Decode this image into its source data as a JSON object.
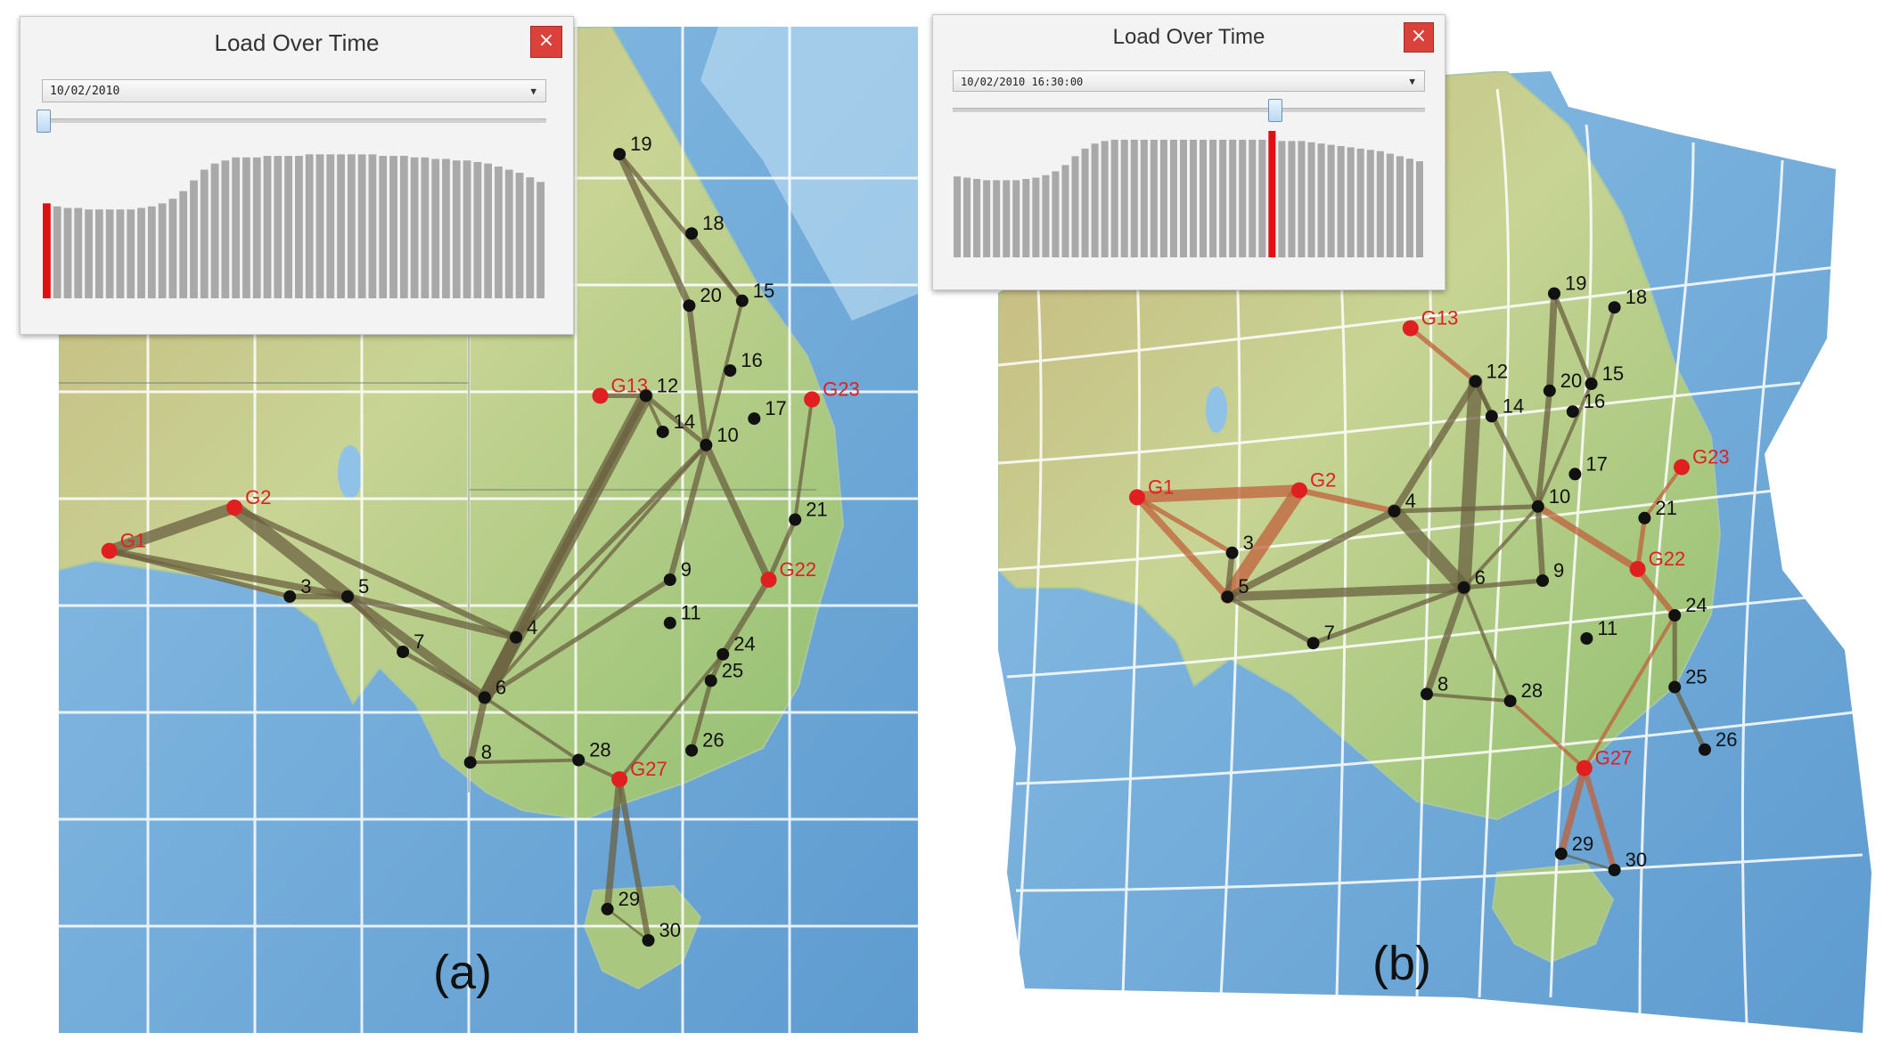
{
  "panels": [
    {
      "id": "a",
      "caption": "(a)",
      "window": {
        "title": "Load Over Time",
        "close_glyph": "×",
        "select_value": "10/02/2010",
        "slider_position": 0.0,
        "highlight_index": 0,
        "bars": [
          0.62,
          0.6,
          0.59,
          0.59,
          0.58,
          0.58,
          0.58,
          0.58,
          0.58,
          0.59,
          0.6,
          0.62,
          0.65,
          0.7,
          0.77,
          0.84,
          0.88,
          0.9,
          0.92,
          0.92,
          0.92,
          0.93,
          0.93,
          0.93,
          0.93,
          0.94,
          0.94,
          0.94,
          0.94,
          0.94,
          0.94,
          0.94,
          0.93,
          0.93,
          0.93,
          0.92,
          0.92,
          0.91,
          0.91,
          0.9,
          0.9,
          0.89,
          0.88,
          0.86,
          0.84,
          0.82,
          0.79,
          0.76
        ]
      },
      "nodes": [
        {
          "label": "19",
          "kind": "bus"
        },
        {
          "label": "18",
          "kind": "bus"
        },
        {
          "label": "20",
          "kind": "bus"
        },
        {
          "label": "15",
          "kind": "bus"
        },
        {
          "label": "16",
          "kind": "bus"
        },
        {
          "label": "G13",
          "kind": "gen"
        },
        {
          "label": "12",
          "kind": "bus"
        },
        {
          "label": "17",
          "kind": "bus"
        },
        {
          "label": "G23",
          "kind": "gen"
        },
        {
          "label": "14",
          "kind": "bus"
        },
        {
          "label": "10",
          "kind": "bus"
        },
        {
          "label": "G2",
          "kind": "gen"
        },
        {
          "label": "21",
          "kind": "bus"
        },
        {
          "label": "G1",
          "kind": "gen"
        },
        {
          "label": "G22",
          "kind": "gen"
        },
        {
          "label": "9",
          "kind": "bus"
        },
        {
          "label": "3",
          "kind": "bus"
        },
        {
          "label": "5",
          "kind": "bus"
        },
        {
          "label": "11",
          "kind": "bus"
        },
        {
          "label": "4",
          "kind": "bus"
        },
        {
          "label": "7",
          "kind": "bus"
        },
        {
          "label": "24",
          "kind": "bus"
        },
        {
          "label": "25",
          "kind": "bus"
        },
        {
          "label": "6",
          "kind": "bus"
        },
        {
          "label": "26",
          "kind": "bus"
        },
        {
          "label": "8",
          "kind": "bus"
        },
        {
          "label": "28",
          "kind": "bus"
        },
        {
          "label": "G27",
          "kind": "gen"
        },
        {
          "label": "29",
          "kind": "bus"
        },
        {
          "label": "30",
          "kind": "bus"
        }
      ]
    },
    {
      "id": "b",
      "caption": "(b)",
      "window": {
        "title": "Load Over Time",
        "close_glyph": "×",
        "select_value": "10/02/2010 16:30:00",
        "slider_position": 0.68,
        "highlight_index": 32,
        "bars": [
          0.64,
          0.63,
          0.62,
          0.61,
          0.61,
          0.61,
          0.61,
          0.62,
          0.63,
          0.65,
          0.68,
          0.73,
          0.8,
          0.86,
          0.9,
          0.92,
          0.93,
          0.93,
          0.93,
          0.93,
          0.93,
          0.93,
          0.93,
          0.93,
          0.93,
          0.93,
          0.93,
          0.93,
          0.93,
          0.93,
          0.93,
          0.93,
          1.0,
          0.92,
          0.92,
          0.92,
          0.91,
          0.9,
          0.89,
          0.88,
          0.87,
          0.86,
          0.85,
          0.84,
          0.82,
          0.8,
          0.78,
          0.76
        ]
      },
      "nodes": [
        {
          "label": "19",
          "kind": "bus"
        },
        {
          "label": "18",
          "kind": "bus"
        },
        {
          "label": "G13",
          "kind": "gen"
        },
        {
          "label": "12",
          "kind": "bus"
        },
        {
          "label": "20",
          "kind": "bus"
        },
        {
          "label": "15",
          "kind": "bus"
        },
        {
          "label": "14",
          "kind": "bus"
        },
        {
          "label": "16",
          "kind": "bus"
        },
        {
          "label": "G23",
          "kind": "gen"
        },
        {
          "label": "17",
          "kind": "bus"
        },
        {
          "label": "G1",
          "kind": "gen"
        },
        {
          "label": "G2",
          "kind": "gen"
        },
        {
          "label": "4",
          "kind": "bus"
        },
        {
          "label": "10",
          "kind": "bus"
        },
        {
          "label": "21",
          "kind": "bus"
        },
        {
          "label": "3",
          "kind": "bus"
        },
        {
          "label": "G22",
          "kind": "gen"
        },
        {
          "label": "5",
          "kind": "bus"
        },
        {
          "label": "6",
          "kind": "bus"
        },
        {
          "label": "9",
          "kind": "bus"
        },
        {
          "label": "24",
          "kind": "bus"
        },
        {
          "label": "7",
          "kind": "bus"
        },
        {
          "label": "11",
          "kind": "bus"
        },
        {
          "label": "25",
          "kind": "bus"
        },
        {
          "label": "8",
          "kind": "bus"
        },
        {
          "label": "28",
          "kind": "bus"
        },
        {
          "label": "26",
          "kind": "bus"
        },
        {
          "label": "G27",
          "kind": "gen"
        },
        {
          "label": "29",
          "kind": "bus"
        },
        {
          "label": "30",
          "kind": "bus"
        }
      ]
    }
  ],
  "colors": {
    "ocean": "#7fb3dd",
    "ocean_deep": "#5f9ccf",
    "land": "#cbd79a",
    "land_green": "#9cc27a",
    "land_tan": "#d9c48a",
    "grid": "#ffffff",
    "bus_node": "#111111",
    "gen_node": "#e02020",
    "gen_label": "#e02020",
    "edge": "#6b6040",
    "edge_gen": "#c0603a",
    "bar": "#a9a9a9",
    "bar_highlight": "#e01010"
  }
}
